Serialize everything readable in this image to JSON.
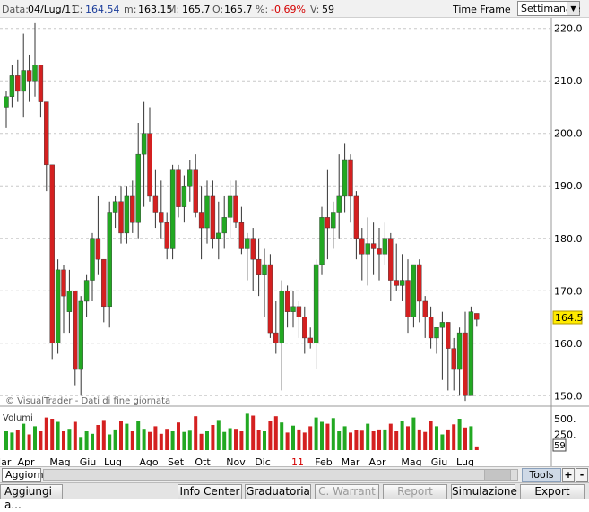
{
  "header": {
    "data_label": "Data:",
    "date": "04/Lug/11",
    "close_label": "C:",
    "close": "164.54",
    "min_label": "m:",
    "min": "163.15",
    "max_label": "M:",
    "max": "165.7",
    "open_label": "O:",
    "open": "165.7",
    "pct_label": "%:",
    "pct": "-0.69%",
    "vol_label": "V:",
    "vol": "59",
    "timeframe_label": "Time Frame",
    "timeframe_value": "Settimanale"
  },
  "chart": {
    "watermark": "© VisualTrader - Dati di fine giornata",
    "volume_title": "Volumi",
    "current_price": "164.5",
    "last_volume": "59",
    "up_color": "#22a822",
    "down_color": "#d42020"
  },
  "chart_data": {
    "type": "candlestick",
    "ylim": [
      148,
      222
    ],
    "yticks": [
      "150.0",
      "160.0",
      "170.0",
      "180.0",
      "190.0",
      "200.0",
      "210.0",
      "220.0"
    ],
    "volume_ticks": [
      "500.",
      "250."
    ],
    "x_labels": [
      "Mar",
      "Apr",
      "Mag",
      "Giu",
      "Lug",
      "Ago",
      "Set",
      "Ott",
      "Nov",
      "Dic",
      "11",
      "Feb",
      "Mar",
      "Apr",
      "Mag",
      "Giu",
      "Lug"
    ],
    "candles": [
      [
        205,
        208,
        201,
        207,
        300
      ],
      [
        207,
        213,
        205,
        211,
        280
      ],
      [
        211,
        214,
        206,
        208,
        320
      ],
      [
        208,
        219,
        203,
        212,
        420
      ],
      [
        212,
        215,
        206,
        210,
        250
      ],
      [
        210,
        221,
        207,
        213,
        380
      ],
      [
        213,
        213,
        203,
        206,
        300
      ],
      [
        206,
        206,
        189,
        194,
        520
      ],
      [
        194,
        194,
        157,
        160,
        500
      ],
      [
        160,
        176,
        158,
        174,
        450
      ],
      [
        174,
        175,
        162,
        169,
        300
      ],
      [
        166,
        174,
        162,
        170,
        340
      ],
      [
        170,
        170,
        152,
        155,
        450
      ],
      [
        155,
        169,
        150,
        168,
        210
      ],
      [
        168,
        173,
        165,
        172,
        300
      ],
      [
        172,
        181,
        168,
        180,
        260
      ],
      [
        180,
        188,
        173,
        176,
        400
      ],
      [
        176,
        176,
        164,
        167,
        480
      ],
      [
        167,
        187,
        163,
        185,
        250
      ],
      [
        185,
        188,
        182,
        187,
        330
      ],
      [
        187,
        190,
        179,
        181,
        470
      ],
      [
        181,
        190,
        179,
        188,
        420
      ],
      [
        188,
        191,
        181,
        183,
        300
      ],
      [
        183,
        202,
        180,
        196,
        460
      ],
      [
        196,
        206,
        186,
        200,
        340
      ],
      [
        200,
        205,
        187,
        188,
        290
      ],
      [
        188,
        193,
        182,
        185,
        380
      ],
      [
        185,
        191,
        180,
        183,
        260
      ],
      [
        183,
        185,
        176,
        178,
        340
      ],
      [
        178,
        194,
        176,
        193,
        300
      ],
      [
        193,
        194,
        184,
        186,
        440
      ],
      [
        186,
        192,
        183,
        190,
        290
      ],
      [
        190,
        195,
        187,
        193,
        310
      ],
      [
        193,
        196,
        184,
        185,
        540
      ],
      [
        185,
        190,
        176,
        182,
        260
      ],
      [
        182,
        191,
        179,
        188,
        300
      ],
      [
        188,
        191,
        178,
        180,
        400
      ],
      [
        180,
        187,
        176,
        181,
        480
      ],
      [
        181,
        188,
        178,
        184,
        290
      ],
      [
        184,
        191,
        180,
        188,
        350
      ],
      [
        188,
        191,
        182,
        183,
        340
      ],
      [
        183,
        186,
        177,
        178,
        300
      ],
      [
        178,
        181,
        172,
        180,
        580
      ],
      [
        180,
        182,
        170,
        176,
        550
      ],
      [
        176,
        180,
        169,
        173,
        320
      ],
      [
        173,
        178,
        165,
        175,
        300
      ],
      [
        175,
        177,
        161,
        162,
        470
      ],
      [
        162,
        168,
        158,
        160,
        540
      ],
      [
        160,
        172,
        151,
        170,
        440
      ],
      [
        170,
        171,
        163,
        166,
        280
      ],
      [
        166,
        170,
        163,
        167,
        390
      ],
      [
        167,
        168,
        161,
        165,
        330
      ],
      [
        165,
        167,
        158,
        161,
        280
      ],
      [
        161,
        163,
        159,
        160,
        380
      ],
      [
        160,
        176,
        155,
        175,
        520
      ],
      [
        175,
        186,
        173,
        184,
        450
      ],
      [
        184,
        193,
        176,
        182,
        420
      ],
      [
        182,
        187,
        178,
        185,
        510
      ],
      [
        185,
        196,
        180,
        188,
        300
      ],
      [
        188,
        198,
        185,
        195,
        380
      ],
      [
        195,
        196,
        183,
        188,
        280
      ],
      [
        188,
        189,
        176,
        180,
        320
      ],
      [
        180,
        182,
        172,
        177,
        310
      ],
      [
        177,
        184,
        171,
        179,
        420
      ],
      [
        179,
        183,
        173,
        178,
        300
      ],
      [
        178,
        182,
        172,
        177,
        330
      ],
      [
        177,
        183,
        175,
        180,
        330
      ],
      [
        180,
        181,
        168,
        172,
        420
      ],
      [
        172,
        179,
        170,
        171,
        300
      ],
      [
        171,
        177,
        168,
        172,
        460
      ],
      [
        172,
        176,
        162,
        165,
        380
      ],
      [
        165,
        175,
        163,
        175,
        520
      ],
      [
        175,
        176,
        164,
        168,
        330
      ],
      [
        168,
        169,
        161,
        165,
        290
      ],
      [
        165,
        167,
        159,
        161,
        470
      ],
      [
        161,
        163,
        158,
        163,
        380
      ],
      [
        163,
        166,
        153,
        164,
        250
      ],
      [
        164,
        164,
        151,
        159,
        330
      ],
      [
        159,
        161,
        151,
        155,
        410
      ],
      [
        155,
        163,
        150,
        162,
        500
      ],
      [
        162,
        166,
        149,
        150,
        360
      ],
      [
        150,
        167,
        150,
        166,
        380
      ],
      [
        165.7,
        165.7,
        163.15,
        164.54,
        59
      ]
    ]
  },
  "footer": {
    "tab": "Aggiorna",
    "tools": "Tools",
    "plus": "+",
    "minus": "-",
    "aggiungi": "Aggiungi a...",
    "info_center": "Info Center",
    "graduatoria": "Graduatoria",
    "c_warrant": "C. Warrant",
    "report": "Report",
    "simulazione": "Simulazione",
    "export": "Export"
  }
}
